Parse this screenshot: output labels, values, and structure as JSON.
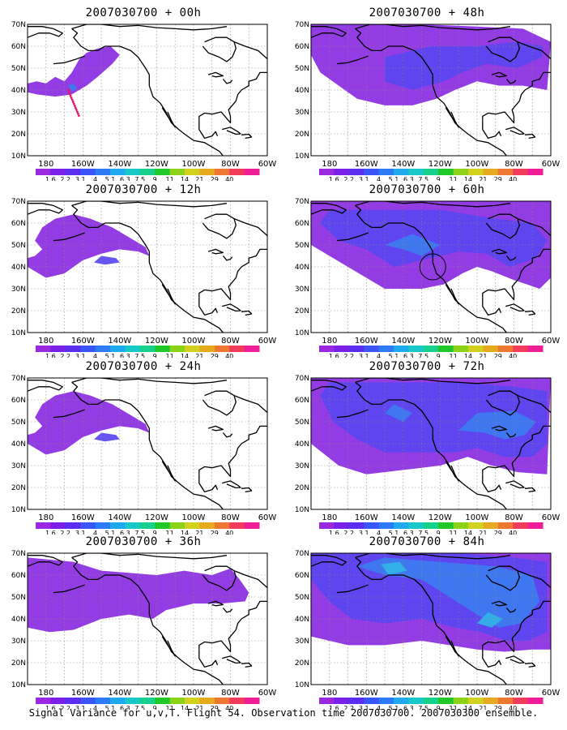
{
  "caption": "Signal Variance for u,v,T. Flight 54. Observation time 2007030700. 2007030300 ensemble.",
  "lat_labels": [
    "70N",
    "60N",
    "50N",
    "40N",
    "30N",
    "20N",
    "10N"
  ],
  "lon_labels": [
    "180",
    "160W",
    "140W",
    "120W",
    "100W",
    "80W",
    "60W"
  ],
  "colorbar": {
    "labels": [
      "1.6",
      "2.2",
      "3.1",
      "4",
      "5.1",
      "6.3",
      "7.5",
      "9",
      "11",
      "14",
      "21",
      "29",
      "40"
    ],
    "colors": [
      "#9b29e0",
      "#7a1fe8",
      "#5a2df0",
      "#3a55f5",
      "#2d7af5",
      "#1faaf0",
      "#19c8c8",
      "#16d08c",
      "#20c82a",
      "#8cd218",
      "#d2d21e",
      "#e6aa1e",
      "#ee7832",
      "#f03c5a",
      "#f01e96"
    ]
  },
  "panels": [
    {
      "title": "2007030700 + 00h",
      "level": 0
    },
    {
      "title": "2007030700 + 48h",
      "level": 3
    },
    {
      "title": "2007030700 + 12h",
      "level": 1
    },
    {
      "title": "2007030700 + 60h",
      "level": 4
    },
    {
      "title": "2007030700 + 24h",
      "level": 1
    },
    {
      "title": "2007030700 + 72h",
      "level": 5
    },
    {
      "title": "2007030700 + 36h",
      "level": 2
    },
    {
      "title": "2007030700 + 84h",
      "level": 6
    }
  ],
  "shade_colors": [
    "#8a2be2",
    "#5a46f0",
    "#3c7cf0",
    "#30b4e6"
  ]
}
